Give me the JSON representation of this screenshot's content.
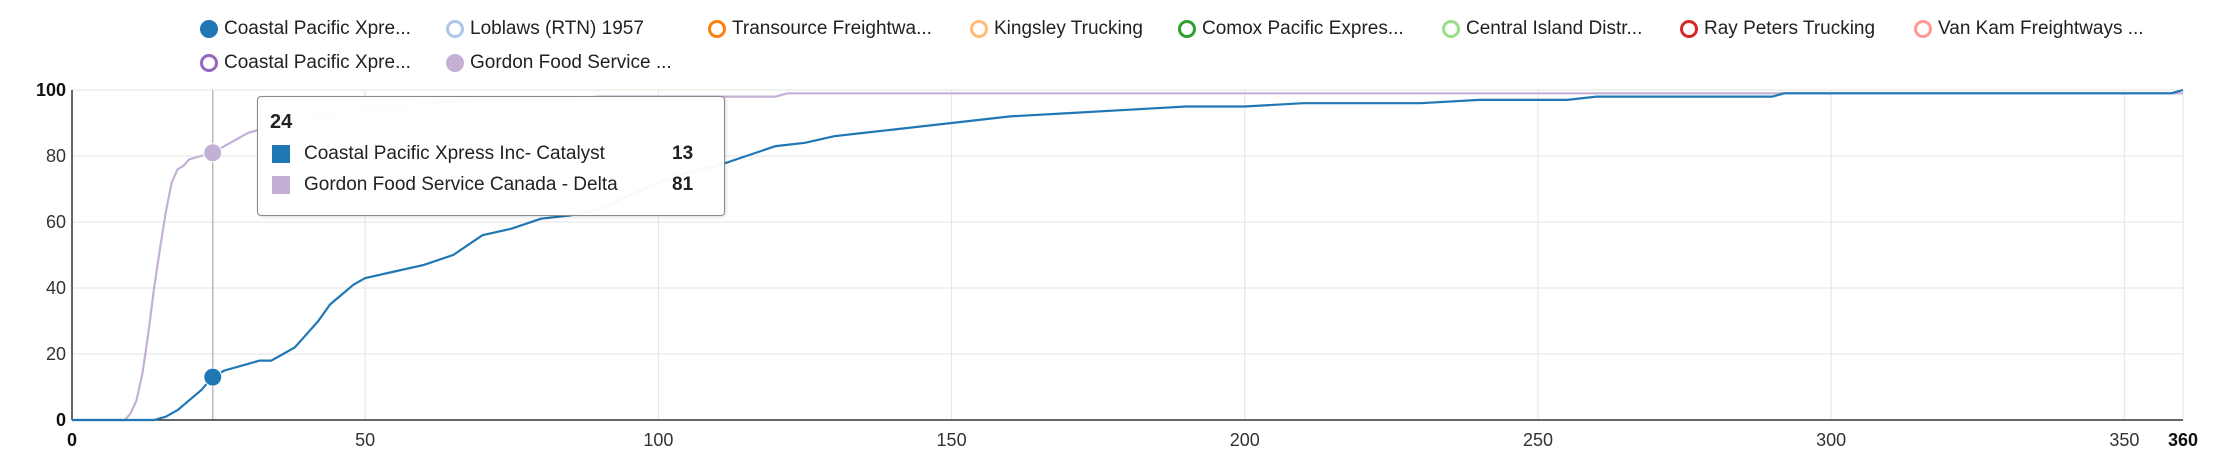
{
  "legend": [
    {
      "label": "Coastal Pacific Xpre...",
      "color": "#1f77b4",
      "filled": true
    },
    {
      "label": "Loblaws (RTN) 1957",
      "color": "#aec7e8",
      "filled": false
    },
    {
      "label": "Transource Freightwa...",
      "color": "#ff7f0e",
      "filled": false
    },
    {
      "label": "Kingsley Trucking",
      "color": "#ffbb78",
      "filled": false
    },
    {
      "label": "Comox Pacific Expres...",
      "color": "#2ca02c",
      "filled": false
    },
    {
      "label": "Central Island Distr...",
      "color": "#98df8a",
      "filled": false
    },
    {
      "label": "Ray Peters Trucking",
      "color": "#d62728",
      "filled": false
    },
    {
      "label": "Van Kam Freightways ...",
      "color": "#ff9896",
      "filled": false
    },
    {
      "label": "Coastal Pacific Xpre...",
      "color": "#9467bd",
      "filled": false
    },
    {
      "label": "Gordon Food Service ...",
      "color": "#c5b0d5",
      "filled": true
    }
  ],
  "tooltip": {
    "x_label": "24",
    "rows": [
      {
        "name": "Coastal Pacific Xpress Inc- Catalyst",
        "value": "13",
        "color": "#1f77b4"
      },
      {
        "name": "Gordon Food Service Canada - Delta",
        "value": "81",
        "color": "#c5b0d5"
      }
    ]
  },
  "chart_data": {
    "type": "line",
    "xlim": [
      0,
      360
    ],
    "ylim": [
      0,
      100
    ],
    "x_ticks": [
      "0",
      "50",
      "100",
      "150",
      "200",
      "250",
      "300",
      "350",
      "360"
    ],
    "y_ticks": [
      "0",
      "20",
      "40",
      "60",
      "80",
      "100"
    ],
    "grid": true,
    "legend_position": "top",
    "hover_x": 24,
    "series": [
      {
        "name": "Coastal Pacific Xpress Inc- Catalyst",
        "color": "#1f77b4",
        "x": [
          0,
          14,
          16,
          18,
          20,
          22,
          24,
          26,
          28,
          30,
          32,
          34,
          36,
          38,
          40,
          42,
          44,
          46,
          48,
          50,
          55,
          60,
          65,
          70,
          75,
          80,
          85,
          90,
          95,
          100,
          105,
          110,
          115,
          120,
          125,
          130,
          135,
          140,
          150,
          160,
          170,
          180,
          190,
          200,
          210,
          220,
          230,
          240,
          250,
          255,
          260,
          270,
          280,
          290,
          292,
          300,
          320,
          340,
          358,
          360
        ],
        "y": [
          0,
          0,
          1,
          3,
          6,
          9,
          13,
          15,
          16,
          17,
          18,
          18,
          20,
          22,
          26,
          30,
          35,
          38,
          41,
          43,
          45,
          47,
          50,
          56,
          58,
          61,
          62,
          64,
          68,
          72,
          75,
          77,
          80,
          83,
          84,
          86,
          87,
          88,
          90,
          92,
          93,
          94,
          95,
          95,
          96,
          96,
          96,
          97,
          97,
          97,
          98,
          98,
          98,
          98,
          99,
          99,
          99,
          99,
          99,
          100
        ]
      },
      {
        "name": "Gordon Food Service Canada - Delta",
        "color": "#c5b0d5",
        "x": [
          0,
          9,
          10,
          11,
          12,
          13,
          14,
          15,
          16,
          17,
          18,
          19,
          20,
          22,
          24,
          26,
          28,
          30,
          32,
          35,
          40,
          45,
          50,
          55,
          60,
          70,
          80,
          90,
          100,
          110,
          120,
          122,
          130,
          150,
          200,
          250,
          300,
          360
        ],
        "y": [
          0,
          0,
          2,
          6,
          14,
          26,
          40,
          52,
          63,
          72,
          76,
          77,
          79,
          80,
          81,
          83,
          85,
          87,
          88,
          89,
          91,
          93,
          94,
          95,
          96,
          97,
          97,
          98,
          98,
          98,
          98,
          99,
          99,
          99,
          99,
          99,
          99,
          99
        ]
      }
    ]
  }
}
